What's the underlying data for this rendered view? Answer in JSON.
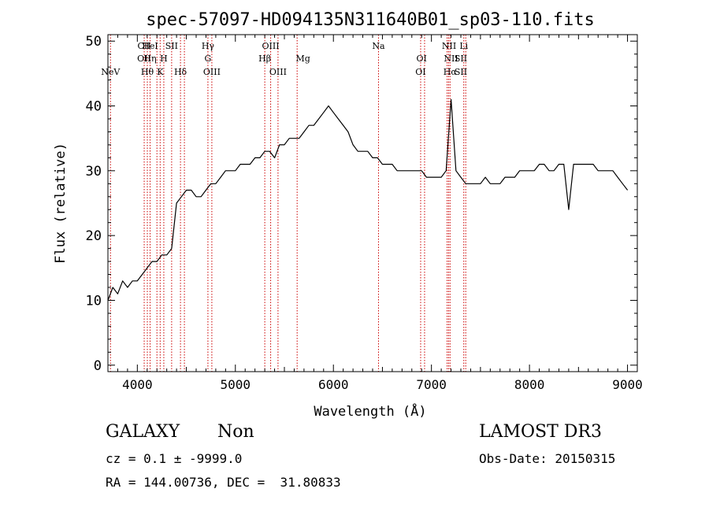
{
  "chart_data": {
    "type": "line",
    "title": "spec-57097-HD094135N311640B01_sp03-110.fits",
    "xlabel": "Wavelength (Å)",
    "ylabel": "Flux (relative)",
    "xlim": [
      3700,
      9100
    ],
    "ylim": [
      -1,
      51
    ],
    "xticks": [
      4000,
      5000,
      6000,
      7000,
      8000,
      9000
    ],
    "yticks": [
      0,
      10,
      20,
      30,
      40,
      50
    ],
    "grid": false,
    "series": [
      {
        "x": [
          3700,
          3750,
          3800,
          3850,
          3900,
          3950,
          4000,
          4050,
          4100,
          4150,
          4200,
          4250,
          4300,
          4350,
          4400,
          4450,
          4500,
          4550,
          4600,
          4650,
          4700,
          4750,
          4800,
          4850,
          4900,
          4950,
          5000,
          5050,
          5100,
          5150,
          5200,
          5250,
          5300,
          5350,
          5400,
          5450,
          5500,
          5550,
          5600,
          5650,
          5700,
          5750,
          5800,
          5850,
          5900,
          5950,
          6000,
          6050,
          6100,
          6150,
          6200,
          6250,
          6300,
          6350,
          6400,
          6450,
          6500,
          6550,
          6600,
          6650,
          6700,
          6750,
          6800,
          6850,
          6900,
          6950,
          7000,
          7050,
          7100,
          7150,
          7200,
          7250,
          7300,
          7350,
          7400,
          7450,
          7500,
          7550,
          7600,
          7650,
          7700,
          7750,
          7800,
          7850,
          7900,
          7950,
          8000,
          8050,
          8100,
          8150,
          8200,
          8250,
          8300,
          8350,
          8400,
          8450,
          8500,
          8550,
          8600,
          8650,
          8700,
          8750,
          8800,
          8850,
          8900,
          8950,
          9000
        ],
        "y": [
          10,
          12,
          11,
          13,
          12,
          13,
          13,
          14,
          15,
          16,
          16,
          17,
          17,
          18,
          25,
          26,
          27,
          27,
          26,
          26,
          27,
          28,
          28,
          29,
          30,
          30,
          30,
          31,
          31,
          31,
          32,
          32,
          33,
          33,
          32,
          34,
          34,
          35,
          35,
          35,
          36,
          37,
          37,
          38,
          39,
          40,
          39,
          38,
          37,
          36,
          34,
          33,
          33,
          33,
          32,
          32,
          31,
          31,
          31,
          30,
          30,
          30,
          30,
          30,
          30,
          29,
          29,
          29,
          29,
          30,
          41,
          30,
          29,
          28,
          28,
          28,
          28,
          29,
          28,
          28,
          28,
          29,
          29,
          29,
          30,
          30,
          30,
          30,
          31,
          31,
          30,
          30,
          31,
          31,
          24,
          31,
          31,
          31,
          31,
          31,
          30,
          30,
          30,
          30,
          29,
          28,
          27
        ]
      }
    ],
    "lines": [
      {
        "label": "NeV",
        "x": 3726,
        "row": 3
      },
      {
        "label": "CII",
        "x": 4070,
        "row": 1
      },
      {
        "label": "OII",
        "x": 4070,
        "row": 2
      },
      {
        "label": "Hθ",
        "x": 4102,
        "row": 3
      },
      {
        "label": "HeI",
        "x": 4130,
        "row": 1
      },
      {
        "label": "Hη",
        "x": 4130,
        "row": 2
      },
      {
        "label": "K",
        "x": 4233,
        "row": 3
      },
      {
        "label": "H",
        "x": 4270,
        "row": 2
      },
      {
        "label": "SII",
        "x": 4350,
        "row": 1
      },
      {
        "label": "Hδ",
        "x": 4440,
        "row": 3
      },
      {
        "label": "Hγ",
        "x": 4720,
        "row": 1
      },
      {
        "label": "G",
        "x": 4720,
        "row": 2
      },
      {
        "label": "OIII",
        "x": 4760,
        "row": 3
      },
      {
        "label": "Hβ",
        "x": 5300,
        "row": 2
      },
      {
        "label": "OIII",
        "x": 5360,
        "row": 1
      },
      {
        "label": "OIII",
        "x": 5435,
        "row": 3
      },
      {
        "label": "Mg",
        "x": 5690,
        "row": 2
      },
      {
        "label": "Na",
        "x": 6460,
        "row": 1
      },
      {
        "label": "OI",
        "x": 6900,
        "row": 2
      },
      {
        "label": "OI",
        "x": 6890,
        "row": 3
      },
      {
        "label": "NII",
        "x": 7180,
        "row": 1
      },
      {
        "label": "NII",
        "x": 7200,
        "row": 2
      },
      {
        "label": "Hα",
        "x": 7190,
        "row": 3
      },
      {
        "label": "Li",
        "x": 7330,
        "row": 1
      },
      {
        "label": "SII",
        "x": 7300,
        "row": 2
      },
      {
        "label": "SII",
        "x": 7300,
        "row": 3
      }
    ],
    "line_marker_x": [
      3726,
      4070,
      4102,
      4130,
      4200,
      4233,
      4270,
      4350,
      4440,
      4480,
      4720,
      4760,
      5300,
      5360,
      5435,
      5630,
      6460,
      6890,
      6930,
      7160,
      7175,
      7190,
      7330,
      7350
    ],
    "colors": {
      "spectrum": "#000000",
      "line_marker": "#cc0000"
    }
  },
  "info": {
    "class": "GALAXY",
    "subclass": "Non",
    "survey": "LAMOST DR3",
    "cz": "cz = 0.1 ± -9999.0",
    "obs_date": "Obs-Date: 20150315",
    "radec": "RA = 144.00736, DEC =  31.80833"
  }
}
